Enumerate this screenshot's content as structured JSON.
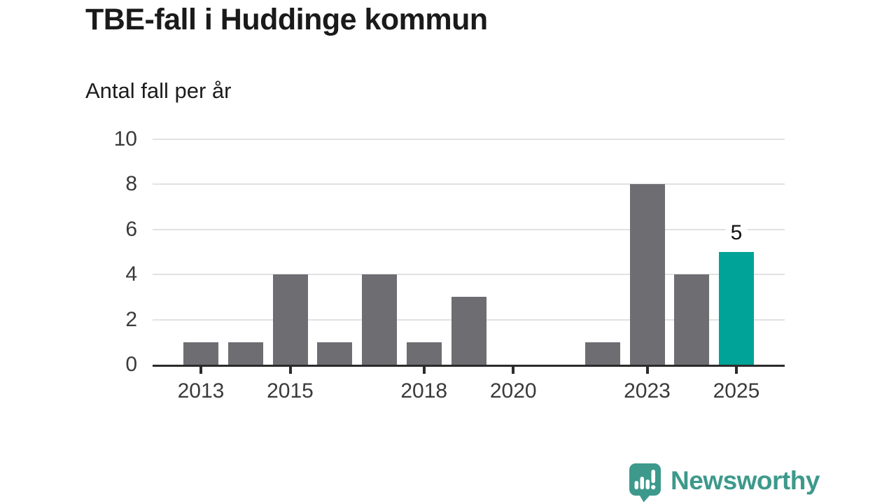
{
  "header": {
    "title": "TBE-fall i Huddinge kommun",
    "subtitle": "Antal fall per år"
  },
  "chart_data": {
    "type": "bar",
    "categories": [
      "2013",
      "2014",
      "2015",
      "2016",
      "2017",
      "2018",
      "2019",
      "2020",
      "2021",
      "2022",
      "2023",
      "2024",
      "2025"
    ],
    "values": [
      1,
      1,
      4,
      1,
      4,
      1,
      3,
      0,
      0,
      1,
      8,
      4,
      5
    ],
    "title": "TBE-fall i Huddinge kommun",
    "xlabel": "",
    "ylabel": "Antal fall per år",
    "ylim": [
      0,
      10
    ],
    "y_ticks": [
      0,
      2,
      4,
      6,
      8,
      10
    ],
    "x_tick_labels": [
      "2013",
      "2015",
      "2018",
      "2020",
      "2023",
      "2025"
    ],
    "grid": true,
    "legend_position": "none",
    "highlight": {
      "category": "2025",
      "value_label": "5"
    },
    "colors": {
      "bar": "#6d6d72",
      "highlight": "#00a398",
      "gridline": "#e2e2e2",
      "axis": "#2b2b2b",
      "tick_label": "#3a3a3a",
      "value_label": "#111111"
    }
  },
  "footer": {
    "brand": "Newsworthy",
    "brand_color": "#3d998c",
    "logo_icon": "newsworthy-chart-bubble-icon"
  }
}
